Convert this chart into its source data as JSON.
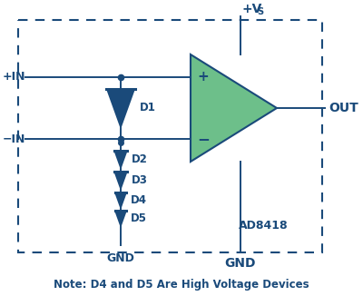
{
  "background_color": "#ffffff",
  "border_color": "#1a4a7a",
  "line_color": "#1a4a7a",
  "diode_fill_color": "#1a4a7a",
  "opamp_fill_color": "#6dbf8a",
  "opamp_border_color": "#1a4a7a",
  "text_color": "#1a4a7a",
  "title": "Note: D4 and D5 Are High Voltage Devices",
  "labels": {
    "plus_in": "+IN",
    "minus_in": "−IN",
    "out": "OUT",
    "vcc": "+V",
    "vcc_s": "S",
    "gnd_bottom": "GND",
    "gnd_diode": "GND",
    "ad8418": "AD8418",
    "d1": "D1",
    "d2": "D2",
    "d3": "D3",
    "d4": "D4",
    "d5": "D5",
    "plus_sign": "+",
    "minus_sign": "−"
  },
  "figsize": [
    4.0,
    3.26
  ],
  "dpi": 100
}
